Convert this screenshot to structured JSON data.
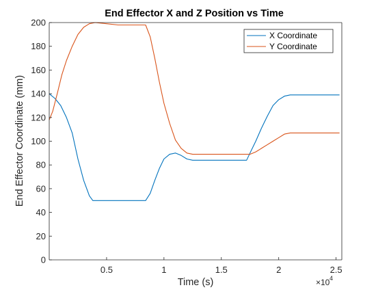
{
  "chart_data": {
    "type": "line",
    "title": "End Effector X and Z Position vs Time",
    "xlabel": "Time (s)",
    "ylabel": "End Effector Coordinate (mm)",
    "xlim": [
      0,
      25500
    ],
    "ylim": [
      0,
      200
    ],
    "x_exponent_label": "×10",
    "x_exponent_power": "4",
    "xticks": [
      {
        "value": 5000,
        "label": "0.5"
      },
      {
        "value": 10000,
        "label": "1"
      },
      {
        "value": 15000,
        "label": "1.5"
      },
      {
        "value": 20000,
        "label": "2"
      },
      {
        "value": 25000,
        "label": "2.5"
      }
    ],
    "yticks": [
      {
        "value": 0,
        "label": "0"
      },
      {
        "value": 20,
        "label": "20"
      },
      {
        "value": 40,
        "label": "40"
      },
      {
        "value": 60,
        "label": "60"
      },
      {
        "value": 80,
        "label": "80"
      },
      {
        "value": 100,
        "label": "100"
      },
      {
        "value": 120,
        "label": "120"
      },
      {
        "value": 140,
        "label": "140"
      },
      {
        "value": 160,
        "label": "160"
      },
      {
        "value": 180,
        "label": "180"
      },
      {
        "value": 200,
        "label": "200"
      }
    ],
    "grid": false,
    "legend_position": "top-right",
    "series": [
      {
        "name": "X Coordinate",
        "color": "#0072BD",
        "points": [
          [
            0,
            140
          ],
          [
            500,
            136
          ],
          [
            1000,
            130
          ],
          [
            1500,
            120
          ],
          [
            2000,
            107
          ],
          [
            2500,
            85
          ],
          [
            3000,
            67
          ],
          [
            3500,
            54
          ],
          [
            3800,
            50
          ],
          [
            4500,
            50
          ],
          [
            6000,
            50
          ],
          [
            7500,
            50
          ],
          [
            8400,
            50
          ],
          [
            8800,
            56
          ],
          [
            9200,
            67
          ],
          [
            9600,
            77
          ],
          [
            10000,
            85
          ],
          [
            10500,
            89
          ],
          [
            11000,
            90
          ],
          [
            11500,
            88
          ],
          [
            12000,
            85
          ],
          [
            12500,
            84
          ],
          [
            14000,
            84
          ],
          [
            15500,
            84
          ],
          [
            17200,
            84
          ],
          [
            17500,
            90
          ],
          [
            18000,
            100
          ],
          [
            18500,
            111
          ],
          [
            19000,
            121
          ],
          [
            19500,
            130
          ],
          [
            20000,
            135
          ],
          [
            20500,
            138
          ],
          [
            21000,
            139
          ],
          [
            22500,
            139
          ],
          [
            24000,
            139
          ],
          [
            25300,
            139
          ]
        ]
      },
      {
        "name": "Y Coordinate",
        "color": "#D95319",
        "points": [
          [
            0,
            118
          ],
          [
            300,
            125
          ],
          [
            700,
            140
          ],
          [
            1100,
            156
          ],
          [
            1500,
            168
          ],
          [
            2000,
            180
          ],
          [
            2500,
            190
          ],
          [
            3000,
            196
          ],
          [
            3500,
            199
          ],
          [
            4000,
            200
          ],
          [
            5000,
            199
          ],
          [
            6000,
            198
          ],
          [
            7000,
            198
          ],
          [
            8400,
            198
          ],
          [
            8800,
            188
          ],
          [
            9200,
            170
          ],
          [
            9600,
            150
          ],
          [
            10000,
            132
          ],
          [
            10500,
            115
          ],
          [
            11000,
            101
          ],
          [
            11500,
            94
          ],
          [
            12000,
            90
          ],
          [
            12500,
            89
          ],
          [
            14000,
            89
          ],
          [
            15500,
            89
          ],
          [
            17000,
            89
          ],
          [
            17500,
            89
          ],
          [
            18000,
            91
          ],
          [
            18500,
            94
          ],
          [
            19000,
            97
          ],
          [
            19500,
            100
          ],
          [
            20000,
            103
          ],
          [
            20500,
            106
          ],
          [
            21000,
            107
          ],
          [
            23000,
            107
          ],
          [
            25300,
            107
          ]
        ]
      }
    ]
  }
}
